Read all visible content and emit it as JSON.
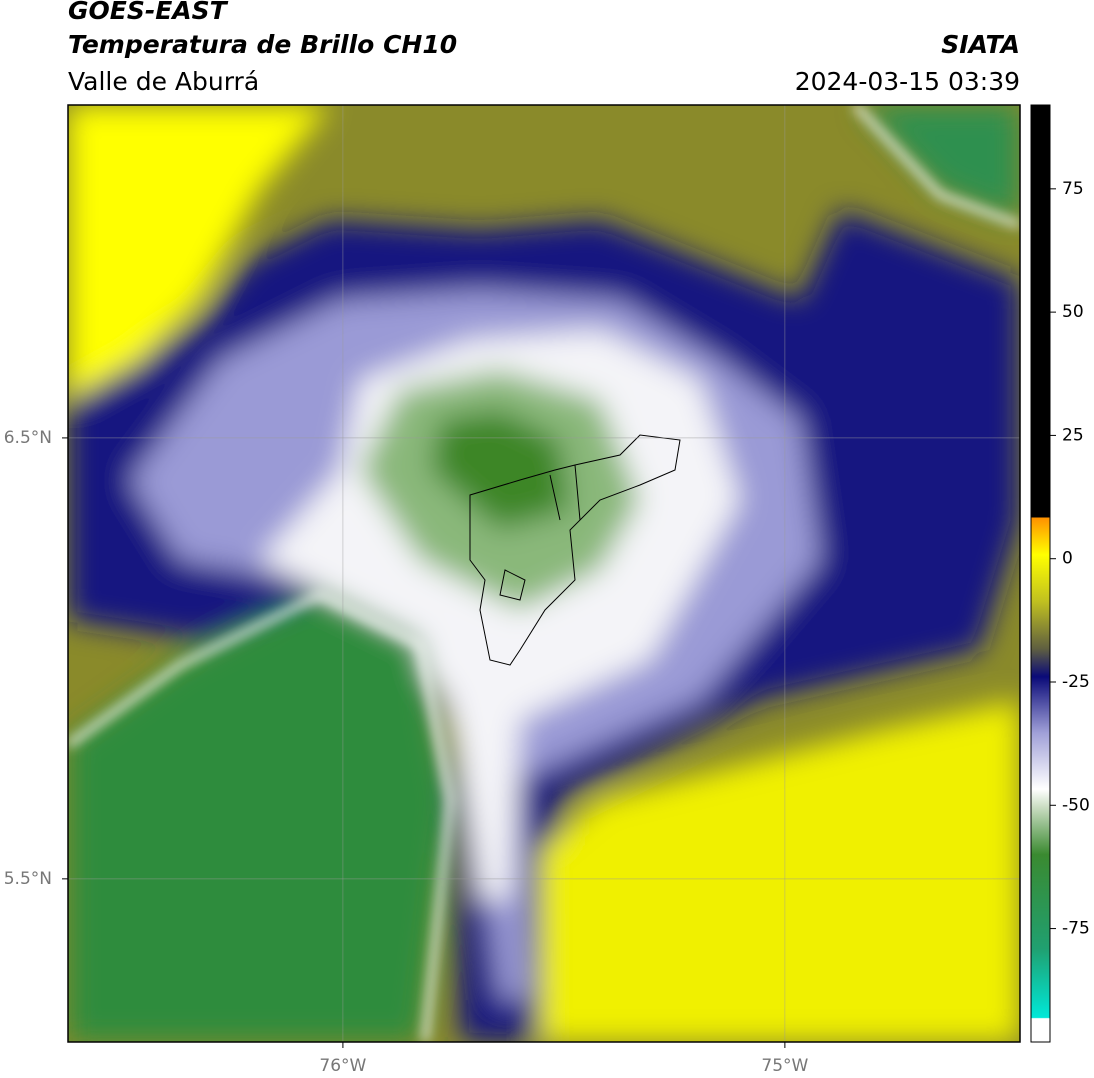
{
  "header": {
    "title": "GOES-EAST",
    "subtitle": "Temperatura de Brillo CH10",
    "region": "Valle de Aburrá",
    "source": "SIATA",
    "datetime": "2024-03-15 03:39"
  },
  "map": {
    "lonlim": [
      -76.622,
      -74.468
    ],
    "latlim": [
      5.13,
      7.255
    ],
    "lonticks": [
      {
        "value": -76,
        "label": "76°W"
      },
      {
        "value": -75,
        "label": "75°W"
      }
    ],
    "latticks": [
      {
        "value": 6.5,
        "label": "6.5°N"
      },
      {
        "value": 5.5,
        "label": "5.5°N"
      }
    ],
    "grid": true
  },
  "colorbar": {
    "lim": [
      -98,
      92
    ],
    "ticks": [
      75,
      50,
      25,
      0,
      -25,
      -50,
      -75
    ]
  }
}
